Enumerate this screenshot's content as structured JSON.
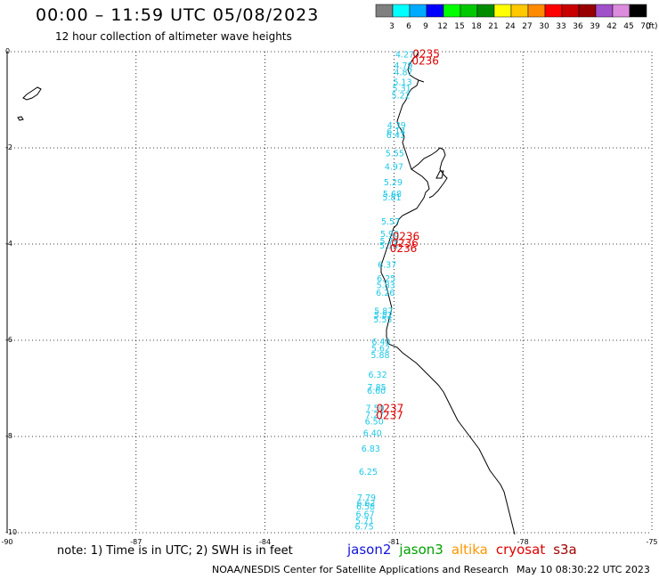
{
  "header": {
    "title": "00:00 – 11:59 UTC 05/08/2023",
    "subtitle": "12 hour collection of altimeter wave heights"
  },
  "colorbar": {
    "unit_label": "(ft)",
    "entries": [
      {
        "label": "3",
        "color": "#808080"
      },
      {
        "label": "6",
        "color": "#00ffff"
      },
      {
        "label": "9",
        "color": "#00aaff"
      },
      {
        "label": "12",
        "color": "#0000ff"
      },
      {
        "label": "15",
        "color": "#00ff00"
      },
      {
        "label": "18",
        "color": "#00c800"
      },
      {
        "label": "21",
        "color": "#008c00"
      },
      {
        "label": "24",
        "color": "#ffff00"
      },
      {
        "label": "27",
        "color": "#ffc800"
      },
      {
        "label": "30",
        "color": "#ff8c00"
      },
      {
        "label": "33",
        "color": "#ff0000"
      },
      {
        "label": "36",
        "color": "#c80000"
      },
      {
        "label": "39",
        "color": "#960000"
      },
      {
        "label": "42",
        "color": "#a050c8"
      },
      {
        "label": "45",
        "color": "#dc8cdc"
      },
      {
        "label": "70",
        "color": "#000000"
      }
    ]
  },
  "map": {
    "lon_range": [
      -90,
      -75
    ],
    "lat_range": [
      -10,
      0
    ],
    "lon_ticks": [
      {
        "value": -90,
        "label": "-90"
      },
      {
        "value": -87,
        "label": "-87"
      },
      {
        "value": -84,
        "label": "-84"
      },
      {
        "value": -81,
        "label": "-81"
      },
      {
        "value": -78,
        "label": "-78"
      },
      {
        "value": -75,
        "label": "-75"
      }
    ],
    "lat_ticks": [
      {
        "value": 0,
        "label": "0"
      },
      {
        "value": -2,
        "label": "-2"
      },
      {
        "value": -4,
        "label": "-4"
      },
      {
        "value": -6,
        "label": "-6"
      },
      {
        "value": -8,
        "label": "-8"
      },
      {
        "value": -10,
        "label": "-10"
      }
    ],
    "grid": true,
    "swh_color": "#1ec8e6",
    "time_color": "#e00000",
    "swh_points": [
      {
        "lon": -80.75,
        "lat": -0.05,
        "value": "4.27"
      },
      {
        "lon": -80.78,
        "lat": -0.28,
        "value": "4.79"
      },
      {
        "lon": -80.78,
        "lat": -0.42,
        "value": "4.87"
      },
      {
        "lon": -80.8,
        "lat": -0.62,
        "value": "5.13"
      },
      {
        "lon": -80.82,
        "lat": -0.75,
        "value": "5.31"
      },
      {
        "lon": -80.84,
        "lat": -0.9,
        "value": "5.22"
      },
      {
        "lon": -80.94,
        "lat": -1.52,
        "value": "4.39"
      },
      {
        "lon": -80.95,
        "lat": -1.65,
        "value": "6.14"
      },
      {
        "lon": -80.96,
        "lat": -1.72,
        "value": "6.41"
      },
      {
        "lon": -80.98,
        "lat": -2.1,
        "value": "5.55"
      },
      {
        "lon": -81.0,
        "lat": -2.38,
        "value": "4.97"
      },
      {
        "lon": -81.02,
        "lat": -2.7,
        "value": "5.29"
      },
      {
        "lon": -81.04,
        "lat": -2.94,
        "value": "5.68"
      },
      {
        "lon": -81.05,
        "lat": -3.02,
        "value": "5.81"
      },
      {
        "lon": -81.08,
        "lat": -3.52,
        "value": "5.57"
      },
      {
        "lon": -81.1,
        "lat": -3.78,
        "value": "5.90"
      },
      {
        "lon": -81.11,
        "lat": -3.93,
        "value": "5.79"
      },
      {
        "lon": -81.12,
        "lat": -4.02,
        "value": "5.14"
      },
      {
        "lon": -81.16,
        "lat": -4.42,
        "value": "6.37"
      },
      {
        "lon": -81.18,
        "lat": -4.7,
        "value": "6.25"
      },
      {
        "lon": -81.19,
        "lat": -4.84,
        "value": "5.83"
      },
      {
        "lon": -81.2,
        "lat": -5.0,
        "value": "6.26"
      },
      {
        "lon": -81.24,
        "lat": -5.38,
        "value": "5.87"
      },
      {
        "lon": -81.25,
        "lat": -5.46,
        "value": "5.82"
      },
      {
        "lon": -81.26,
        "lat": -5.56,
        "value": "5.55"
      },
      {
        "lon": -81.3,
        "lat": -6.02,
        "value": "6.40"
      },
      {
        "lon": -81.31,
        "lat": -6.16,
        "value": "5.62"
      },
      {
        "lon": -81.32,
        "lat": -6.3,
        "value": "5.88"
      },
      {
        "lon": -81.38,
        "lat": -6.7,
        "value": "6.32"
      },
      {
        "lon": -81.4,
        "lat": -6.96,
        "value": "7.85"
      },
      {
        "lon": -81.41,
        "lat": -7.04,
        "value": "6.60"
      },
      {
        "lon": -81.44,
        "lat": -7.4,
        "value": "7.50"
      },
      {
        "lon": -81.45,
        "lat": -7.54,
        "value": "7.27"
      },
      {
        "lon": -81.46,
        "lat": -7.68,
        "value": "6.50"
      },
      {
        "lon": -81.5,
        "lat": -7.92,
        "value": "6.40"
      },
      {
        "lon": -81.54,
        "lat": -8.24,
        "value": "6.83"
      },
      {
        "lon": -81.6,
        "lat": -8.72,
        "value": "6.25"
      },
      {
        "lon": -81.64,
        "lat": -9.26,
        "value": "7.79"
      },
      {
        "lon": -81.65,
        "lat": -9.37,
        "value": "6.62"
      },
      {
        "lon": -81.66,
        "lat": -9.44,
        "value": "6.58"
      },
      {
        "lon": -81.67,
        "lat": -9.6,
        "value": "6.67"
      },
      {
        "lon": -81.68,
        "lat": -9.74,
        "value": "5.71"
      },
      {
        "lon": -81.69,
        "lat": -9.86,
        "value": "6.75"
      }
    ],
    "time_points": [
      {
        "lon": -80.25,
        "lat": -0.03,
        "value": "0235"
      },
      {
        "lon": -80.27,
        "lat": -0.18,
        "value": "0236"
      },
      {
        "lon": -80.72,
        "lat": -3.82,
        "value": "0236"
      },
      {
        "lon": -80.75,
        "lat": -3.96,
        "value": "0236"
      },
      {
        "lon": -80.78,
        "lat": -4.07,
        "value": "0236"
      },
      {
        "lon": -81.09,
        "lat": -7.4,
        "value": "0237"
      },
      {
        "lon": -81.1,
        "lat": -7.55,
        "value": "0237"
      }
    ]
  },
  "footer": {
    "note": "note: 1) Time is in UTC; 2) SWH is in feet",
    "missions": [
      {
        "name": "jason2",
        "color": "#1414dc"
      },
      {
        "name": "jason3",
        "color": "#00a000"
      },
      {
        "name": "altika",
        "color": "#ff9600"
      },
      {
        "name": "cryosat",
        "color": "#e00000"
      },
      {
        "name": "s3a",
        "color": "#a00000"
      }
    ],
    "credit": "NOAA/NESDIS Center for Satellite Applications and Research",
    "timestamp": "May 10 08:30:22 UTC 2023"
  }
}
